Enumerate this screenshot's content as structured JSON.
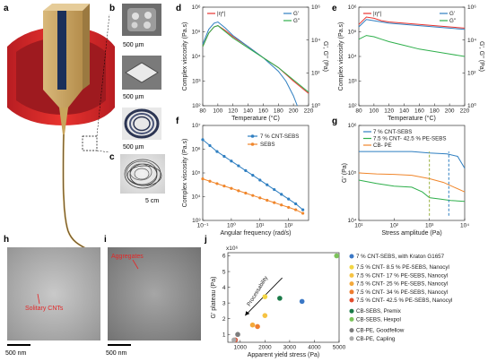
{
  "panels": {
    "a": {
      "letter": "a"
    },
    "b": {
      "letter": "b",
      "scale1": "500 µm",
      "scale2": "500 µm",
      "scale3": "500 µm"
    },
    "c": {
      "letter": "c",
      "scale": "5 cm"
    },
    "d": {
      "letter": "d"
    },
    "e": {
      "letter": "e"
    },
    "f": {
      "letter": "f"
    },
    "g": {
      "letter": "g"
    },
    "h": {
      "letter": "h",
      "scale": "500 nm",
      "annotation": "Solitary CNTs"
    },
    "i": {
      "letter": "i",
      "scale": "500 nm",
      "annotation": "Aggregates"
    },
    "j": {
      "letter": "j"
    }
  },
  "chart_data": [
    {
      "id": "d",
      "type": "line",
      "xlabel": "Temperature (°C)",
      "ylabel_left": "Complex viscosity (Pa.s)",
      "ylabel_right": "G', G'' (Pa)",
      "xticks": [
        "80",
        "100",
        "120",
        "140",
        "160",
        "180",
        "200",
        "220"
      ],
      "yticks_left": [
        "10²",
        "10³",
        "10⁴",
        "10⁵",
        "10⁶"
      ],
      "yticks_right": [
        "10⁰",
        "10²",
        "10⁴",
        "10⁶"
      ],
      "xlim": [
        80,
        220
      ],
      "legend_left": [
        {
          "name": "|η*|",
          "color": "#e8332e"
        }
      ],
      "legend_right": [
        {
          "name": "G'",
          "color": "#2f7fc1"
        },
        {
          "name": "G''",
          "color": "#2eaf4b"
        }
      ],
      "series": [
        {
          "name": "|η*|",
          "color": "#e8332e",
          "x": [
            80,
            88,
            95,
            100,
            110,
            120,
            140,
            160,
            180,
            200,
            220
          ],
          "y": [
            4.4,
            4.95,
            5.2,
            5.25,
            5.05,
            4.8,
            4.4,
            3.95,
            3.55,
            3.0,
            2.5
          ]
        },
        {
          "name": "G'",
          "color": "#2f7fc1",
          "x": [
            80,
            88,
            95,
            100,
            110,
            120,
            140,
            160,
            180,
            190,
            200,
            205
          ],
          "y": [
            4.5,
            5.1,
            5.35,
            5.4,
            5.15,
            4.85,
            4.4,
            3.95,
            3.4,
            3.0,
            2.4,
            2.0
          ]
        },
        {
          "name": "G''",
          "color": "#2eaf4b",
          "x": [
            80,
            88,
            95,
            100,
            110,
            120,
            140,
            160,
            180,
            200,
            220
          ],
          "y": [
            4.4,
            4.95,
            5.2,
            5.25,
            5.0,
            4.75,
            4.35,
            3.95,
            3.55,
            3.05,
            2.55
          ]
        }
      ]
    },
    {
      "id": "e",
      "type": "line",
      "xlabel": "Temperature (°C)",
      "ylabel_left": "Complex viscosity (Pa.s)",
      "ylabel_right": "G', G'' (Pa)",
      "xticks": [
        "80",
        "100",
        "120",
        "140",
        "160",
        "180",
        "200",
        "220"
      ],
      "yticks_left": [
        "10²",
        "10³",
        "10⁴",
        "10⁵",
        "10⁶"
      ],
      "yticks_right": [
        "10⁰",
        "10²",
        "10⁴",
        "10⁶"
      ],
      "xlim": [
        80,
        220
      ],
      "legend_left": [
        {
          "name": "|η*|",
          "color": "#e8332e"
        }
      ],
      "legend_right": [
        {
          "name": "G'",
          "color": "#2f7fc1"
        },
        {
          "name": "G''",
          "color": "#2eaf4b"
        }
      ],
      "series": [
        {
          "name": "|η*|",
          "color": "#e8332e",
          "x": [
            80,
            90,
            100,
            110,
            120,
            140,
            160,
            180,
            200,
            220
          ],
          "y": [
            5.3,
            5.6,
            5.55,
            5.45,
            5.4,
            5.35,
            5.3,
            5.25,
            5.2,
            5.15
          ]
        },
        {
          "name": "G'",
          "color": "#2f7fc1",
          "x": [
            80,
            90,
            100,
            110,
            120,
            140,
            160,
            180,
            200,
            220
          ],
          "y": [
            5.2,
            5.5,
            5.45,
            5.4,
            5.35,
            5.3,
            5.25,
            5.2,
            5.15,
            5.1
          ]
        },
        {
          "name": "G''",
          "color": "#2eaf4b",
          "x": [
            80,
            90,
            100,
            110,
            120,
            140,
            160,
            180,
            200,
            220
          ],
          "y": [
            4.7,
            4.85,
            4.8,
            4.7,
            4.6,
            4.45,
            4.3,
            4.2,
            4.1,
            4.0
          ]
        }
      ]
    },
    {
      "id": "f",
      "type": "line",
      "xlabel": "Angular frequency (rad/s)",
      "ylabel": "Complex viscosity (Pa.s)",
      "xticks": [
        "10⁻¹",
        "10⁰",
        "10¹",
        "10²"
      ],
      "yticks": [
        "10³",
        "10⁴",
        "10⁵",
        "10⁶",
        "10⁷"
      ],
      "legend": [
        {
          "name": "7 % CNT-SEBS",
          "color": "#2f7fc1"
        },
        {
          "name": "SEBS",
          "color": "#f0862b"
        }
      ],
      "series": [
        {
          "name": "7 % CNT-SEBS",
          "color": "#2f7fc1",
          "x": [
            -1,
            -0.75,
            -0.5,
            -0.25,
            0,
            0.25,
            0.5,
            0.75,
            1,
            1.25,
            1.5,
            1.75,
            2,
            2.25,
            2.5
          ],
          "y": [
            6.4,
            6.15,
            5.9,
            5.7,
            5.5,
            5.3,
            5.1,
            4.9,
            4.7,
            4.5,
            4.3,
            4.1,
            3.9,
            3.7,
            3.45
          ]
        },
        {
          "name": "SEBS",
          "color": "#f0862b",
          "x": [
            -1,
            -0.75,
            -0.5,
            -0.25,
            0,
            0.25,
            0.5,
            0.75,
            1,
            1.25,
            1.5,
            1.75,
            2,
            2.25,
            2.5
          ],
          "y": [
            4.75,
            4.65,
            4.55,
            4.45,
            4.35,
            4.25,
            4.15,
            4.05,
            3.95,
            3.85,
            3.75,
            3.65,
            3.55,
            3.45,
            3.3
          ]
        }
      ]
    },
    {
      "id": "g",
      "type": "line",
      "xlabel": "Stress amplitude (Pa)",
      "ylabel": "G' (Pa)",
      "xticks": [
        "10¹",
        "10²",
        "10³",
        "10⁴"
      ],
      "yticks": [
        "10⁴",
        "10⁵",
        "10⁶"
      ],
      "legend": [
        {
          "name": "7 % CNT-SEBS",
          "color": "#2f7fc1"
        },
        {
          "name": "7.5 % CNT- 42.5 % PE-SEBS",
          "color": "#2eaf4b"
        },
        {
          "name": "CB- PE",
          "color": "#f0862b"
        }
      ],
      "series": [
        {
          "name": "7 % CNT-SEBS",
          "color": "#2f7fc1",
          "x": [
            1,
            1.5,
            2,
            2.5,
            3,
            3.5,
            3.8,
            4
          ],
          "y": [
            5.45,
            5.45,
            5.45,
            5.45,
            5.42,
            5.4,
            5.35,
            5.1
          ]
        },
        {
          "name": "CB- PE",
          "color": "#f0862b",
          "x": [
            1,
            1.5,
            2,
            2.5,
            3,
            3.4,
            3.7,
            4
          ],
          "y": [
            5.0,
            4.98,
            4.97,
            4.95,
            4.88,
            4.8,
            4.7,
            4.6
          ]
        },
        {
          "name": "7.5 % CNT- 42.5 % PE-SEBS",
          "color": "#2eaf4b",
          "x": [
            1,
            1.5,
            2,
            2.5,
            2.8,
            3,
            3.3,
            3.6,
            4
          ],
          "y": [
            4.85,
            4.78,
            4.72,
            4.7,
            4.6,
            4.48,
            4.45,
            4.42,
            4.4
          ]
        }
      ],
      "markers_x": [
        3.0,
        3.55
      ]
    },
    {
      "id": "j",
      "type": "scatter",
      "xlabel": "Apparent yield stress (Pa)",
      "ylabel": "G' plateau (Pa)",
      "multiplier": "x10⁶",
      "xticks": [
        "1000",
        "2000",
        "3000",
        "4000",
        "5000"
      ],
      "yticks": [
        "1",
        "2",
        "3",
        "4",
        "5",
        "6"
      ],
      "xlim": [
        500,
        5000
      ],
      "ylim": [
        0.5,
        6.2
      ],
      "arrow_label": "Processability",
      "points": [
        {
          "name": "7 % CNT-SEBS, with Kraton G1657",
          "color": "#3b78c6",
          "x": 3500,
          "y": 3.1
        },
        {
          "name": "7.5 % CNT- 8.5 % PE-SEBS, Nanocyl",
          "color": "#f2d543",
          "x": 2000,
          "y": 3.4
        },
        {
          "name": "7.5 % CNT- 17 % PE-SEBS, Nanocyl",
          "color": "#f6c343",
          "x": 2000,
          "y": 2.2
        },
        {
          "name": "7.5 % CNT- 25 % PE-SEBS, Nanocyl",
          "color": "#f4a93b",
          "x": 1500,
          "y": 1.6
        },
        {
          "name": "7.5 % CNT- 34 % PE-SEBS, Nanocyl",
          "color": "#ee7d2f",
          "x": 1700,
          "y": 1.5
        },
        {
          "name": "7.5 % CNT- 42.5 % PE-SEBS, Nanocyl",
          "color": "#e24d2d",
          "x": 800,
          "y": 0.65
        },
        {
          "name": "CB-SEBS, Premix",
          "color": "#1a7a48",
          "x": 2600,
          "y": 3.3
        },
        {
          "name": "CB-SEBS, Hexpol",
          "color": "#7cc35a",
          "x": 4900,
          "y": 6.0
        },
        {
          "name": "CB-PE, Goodfellow",
          "color": "#7d7d7d",
          "x": 900,
          "y": 1.0
        },
        {
          "name": "CB-PE, Capling",
          "color": "#aaaaaa",
          "x": 750,
          "y": 0.65
        }
      ]
    }
  ]
}
